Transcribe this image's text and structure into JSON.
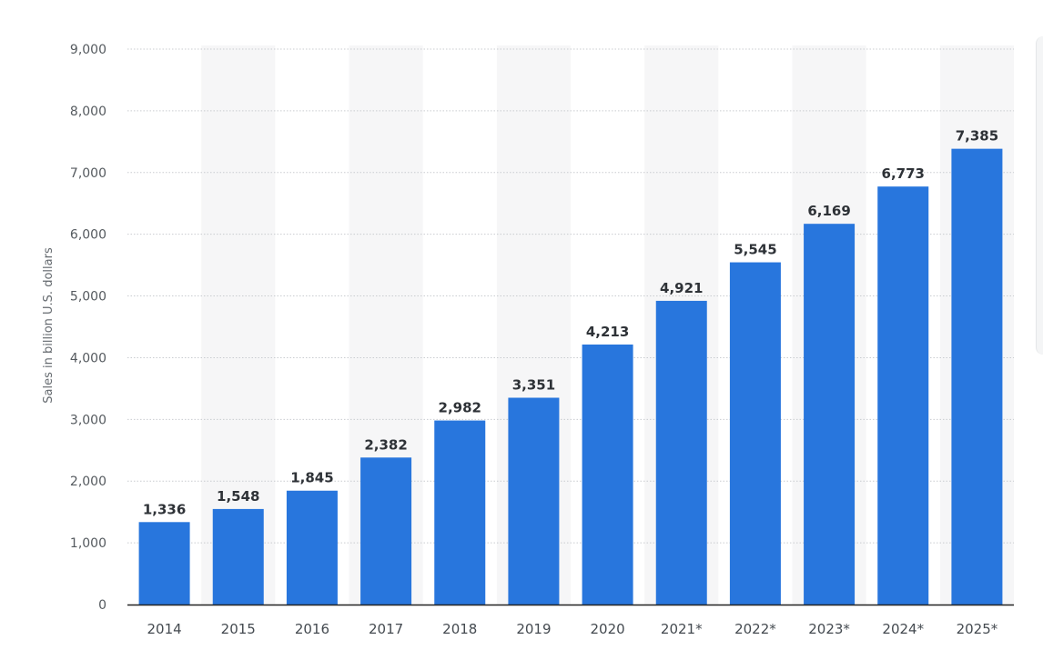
{
  "chart_data": {
    "type": "bar",
    "categories": [
      "2014",
      "2015",
      "2016",
      "2017",
      "2018",
      "2019",
      "2020",
      "2021*",
      "2022*",
      "2023*",
      "2024*",
      "2025*"
    ],
    "values": [
      1336,
      1548,
      1845,
      2382,
      2982,
      3351,
      4213,
      4921,
      5545,
      6169,
      6773,
      7385
    ],
    "value_labels": [
      "1,336",
      "1,548",
      "1,845",
      "2,382",
      "2,982",
      "3,351",
      "4,213",
      "4,921",
      "5,545",
      "6,169",
      "6,773",
      "7,385"
    ],
    "yticks": [
      0,
      1000,
      2000,
      3000,
      4000,
      5000,
      6000,
      7000,
      8000,
      9000
    ],
    "ytick_labels": [
      "0",
      "1,000",
      "2,000",
      "3,000",
      "4,000",
      "5,000",
      "6,000",
      "7,000",
      "8,000",
      "9,000"
    ],
    "ylim": [
      0,
      9000
    ],
    "title": "",
    "xlabel": "",
    "ylabel": "Sales in billion U.S. dollars",
    "grid": true,
    "grid_style": "dotted",
    "colors": {
      "bar": "#2876dd",
      "band": "#f6f6f7",
      "grid": "#c9ccd0",
      "axis": "#222222"
    }
  }
}
